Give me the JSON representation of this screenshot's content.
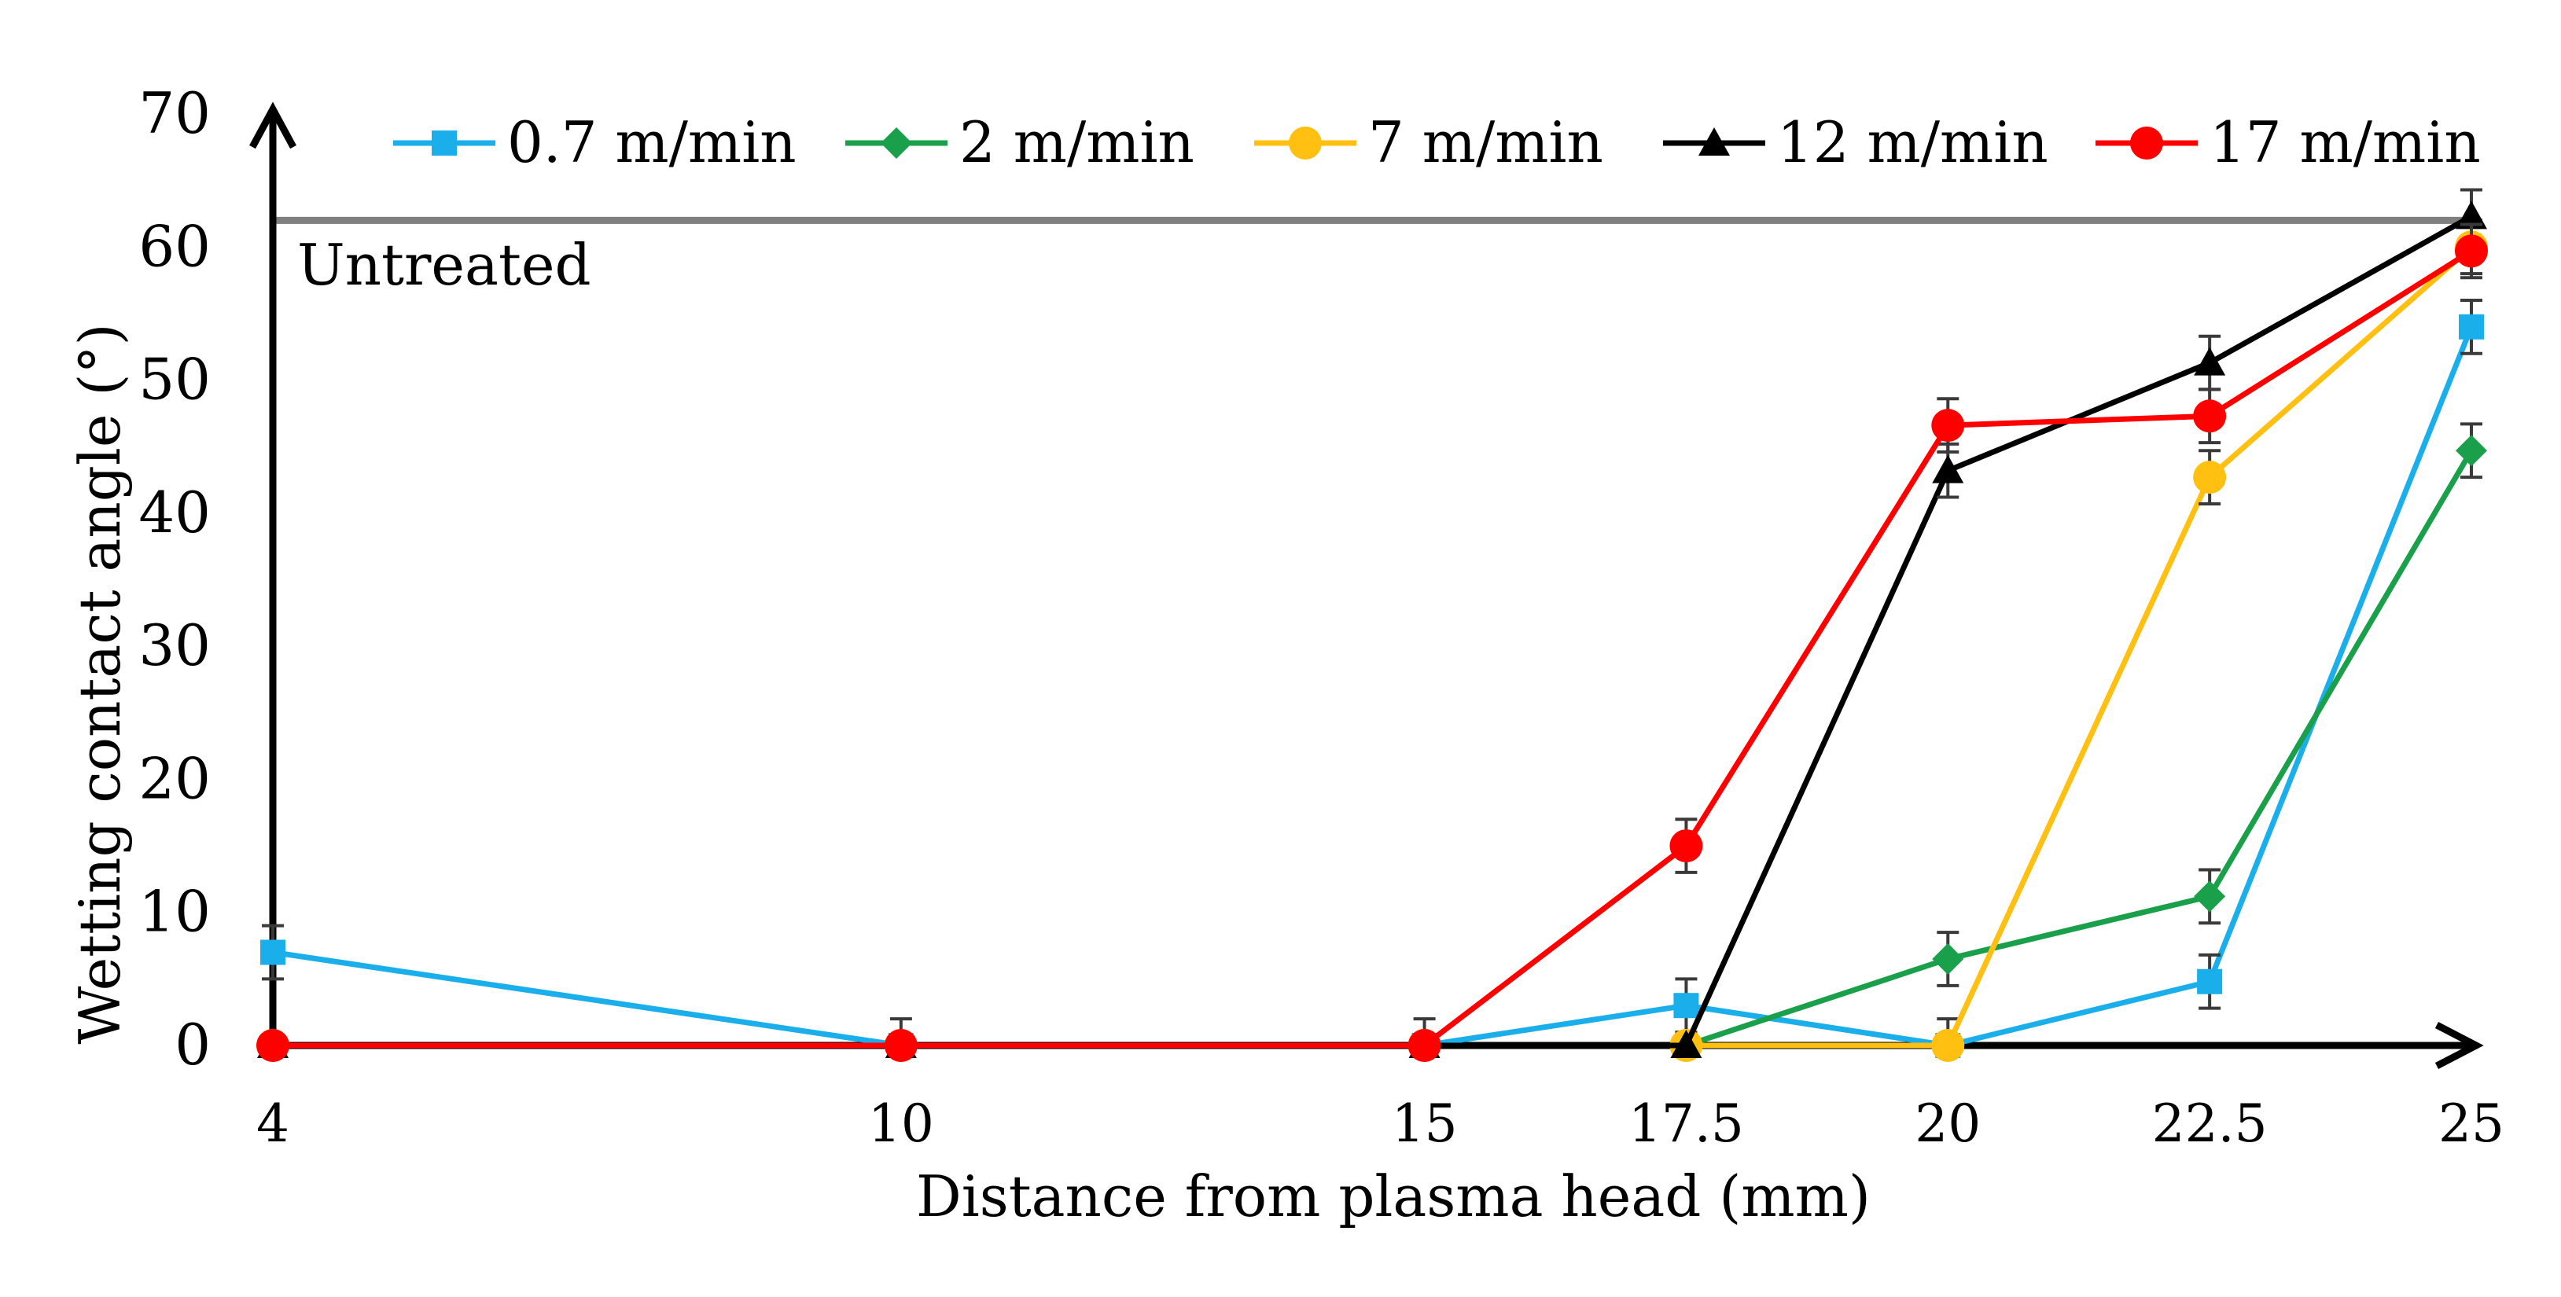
{
  "chart_data": {
    "type": "line",
    "xlabel": "Distance from plasma head (mm)",
    "ylabel": "Wetting contact angle (°)",
    "x": [
      4,
      10,
      15,
      17.5,
      20,
      22.5,
      25
    ],
    "x_tick_labels": [
      "4",
      "10",
      "15",
      "17.5",
      "20",
      "22.5",
      "25"
    ],
    "y_tick_labels": [
      "0",
      "10",
      "20",
      "30",
      "40",
      "50",
      "60",
      "70"
    ],
    "ylim": [
      0,
      70
    ],
    "grid": false,
    "legend_position": "top",
    "reference_line": {
      "label": "Untreated",
      "value": 62,
      "color": "#7f7f7f"
    },
    "series": [
      {
        "name": "0.7 m/min",
        "color": "#1aaeeb",
        "marker": "square",
        "values": [
          7,
          0,
          0,
          3,
          0,
          4.8,
          54
        ],
        "errors": [
          2,
          2,
          2,
          2,
          2,
          2,
          2
        ]
      },
      {
        "name": "2 m/min",
        "color": "#1aa04a",
        "marker": "diamond",
        "values": [
          0,
          0,
          0,
          0,
          6.5,
          11.2,
          44.7
        ],
        "errors": [
          0,
          0,
          0,
          0,
          2,
          2,
          2
        ]
      },
      {
        "name": "7 m/min",
        "color": "#ffc012",
        "marker": "circle",
        "values": [
          0,
          0,
          0,
          0,
          0,
          42.7,
          60
        ],
        "errors": [
          0,
          0,
          0,
          0,
          0,
          2,
          2
        ]
      },
      {
        "name": "12 m/min",
        "color": "#000000",
        "marker": "triangle",
        "values": [
          0,
          0,
          0,
          0,
          43.2,
          51.3,
          62.3
        ],
        "errors": [
          0,
          0,
          0,
          0,
          2,
          2,
          2
        ]
      },
      {
        "name": "17 m/min",
        "color": "#ff0000",
        "marker": "circle",
        "values": [
          0,
          0,
          0,
          15,
          46.6,
          47.3,
          59.7
        ],
        "errors": [
          0,
          0,
          0,
          2,
          2,
          2,
          2
        ]
      }
    ]
  }
}
